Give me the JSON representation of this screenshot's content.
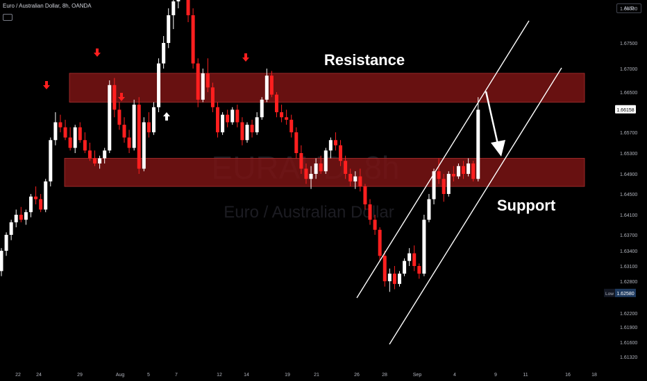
{
  "header": {
    "title": "Euro / Australian Dollar, 8h, OANDA"
  },
  "currency": "AUD",
  "watermark": {
    "symbol": "EURAUD, 8h",
    "name": "Euro / Australian Dollar"
  },
  "price_tag": {
    "value": "1.66158",
    "color": "#ffffff"
  },
  "low_tag": {
    "label": "Low",
    "value": "1.62580",
    "color": "#1e3a5f"
  },
  "colors": {
    "bull": "#ffffff",
    "bear": "#ff1f1f",
    "zone": "#7a1414",
    "background": "#000000"
  },
  "chart_data": {
    "type": "candlestick",
    "y_axis": {
      "ticks": [
        "1.68000",
        "1.67500",
        "1.67000",
        "1.66500",
        "1.65700",
        "1.65300",
        "1.64900",
        "1.64500",
        "1.64100",
        "1.63700",
        "1.63400",
        "1.63100",
        "1.62800",
        "1.62200",
        "1.61900",
        "1.61600",
        "1.61320"
      ]
    },
    "x_axis": {
      "ticks": [
        "22",
        "24",
        "29",
        "Aug",
        "5",
        "7",
        "12",
        "14",
        "19",
        "21",
        "26",
        "28",
        "Sep",
        "4",
        "9",
        "11",
        "16",
        "18"
      ]
    },
    "zones": [
      {
        "label": "Resistance",
        "top": 1.669,
        "bottom": 1.663
      },
      {
        "label": "Support",
        "top": 1.652,
        "bottom": 1.6465
      }
    ],
    "annotations": [
      "Resistance",
      "Support"
    ],
    "channel": {
      "type": "ascending"
    },
    "candles": [
      [
        1.63,
        1.6345,
        1.629,
        1.634
      ],
      [
        1.634,
        1.6375,
        1.633,
        1.637
      ],
      [
        1.637,
        1.64,
        1.636,
        1.6395
      ],
      [
        1.6395,
        1.642,
        1.6385,
        1.641
      ],
      [
        1.641,
        1.6425,
        1.6395,
        1.64
      ],
      [
        1.64,
        1.642,
        1.639,
        1.6415
      ],
      [
        1.6415,
        1.645,
        1.6405,
        1.6445
      ],
      [
        1.6445,
        1.6465,
        1.643,
        1.644
      ],
      [
        1.644,
        1.645,
        1.6415,
        1.642
      ],
      [
        1.642,
        1.648,
        1.6415,
        1.6475
      ],
      [
        1.6475,
        1.656,
        1.6465,
        1.6555
      ],
      [
        1.6555,
        1.661,
        1.6545,
        1.659
      ],
      [
        1.659,
        1.6605,
        1.657,
        1.658
      ],
      [
        1.658,
        1.6595,
        1.6555,
        1.656
      ],
      [
        1.656,
        1.658,
        1.6535,
        1.654
      ],
      [
        1.654,
        1.6585,
        1.653,
        1.658
      ],
      [
        1.658,
        1.659,
        1.655,
        1.6555
      ],
      [
        1.6555,
        1.657,
        1.653,
        1.6535
      ],
      [
        1.6535,
        1.655,
        1.6515,
        1.652
      ],
      [
        1.652,
        1.6535,
        1.6505,
        1.651
      ],
      [
        1.651,
        1.6525,
        1.65,
        1.652
      ],
      [
        1.652,
        1.654,
        1.651,
        1.6535
      ],
      [
        1.6535,
        1.6675,
        1.653,
        1.6665
      ],
      [
        1.6665,
        1.668,
        1.66,
        1.6615
      ],
      [
        1.6615,
        1.663,
        1.6575,
        1.6585
      ],
      [
        1.6585,
        1.66,
        1.655,
        1.656
      ],
      [
        1.656,
        1.6575,
        1.653,
        1.654
      ],
      [
        1.654,
        1.6635,
        1.6535,
        1.6625
      ],
      [
        1.6625,
        1.664,
        1.649,
        1.65
      ],
      [
        1.65,
        1.66,
        1.6495,
        1.659
      ],
      [
        1.659,
        1.661,
        1.656,
        1.657
      ],
      [
        1.657,
        1.663,
        1.6565,
        1.662
      ],
      [
        1.662,
        1.672,
        1.661,
        1.671
      ],
      [
        1.671,
        1.676,
        1.67,
        1.675
      ],
      [
        1.675,
        1.68,
        1.674,
        1.679
      ],
      [
        1.679,
        1.682,
        1.677,
        1.681
      ],
      [
        1.681,
        1.685,
        1.68,
        1.684
      ],
      [
        1.684,
        1.687,
        1.682,
        1.683
      ],
      [
        1.683,
        1.685,
        1.678,
        1.679
      ],
      [
        1.679,
        1.68,
        1.67,
        1.671
      ],
      [
        1.671,
        1.672,
        1.662,
        1.6635
      ],
      [
        1.6635,
        1.67,
        1.663,
        1.669
      ],
      [
        1.669,
        1.672,
        1.665,
        1.666
      ],
      [
        1.666,
        1.667,
        1.661,
        1.662
      ],
      [
        1.662,
        1.663,
        1.656,
        1.657
      ],
      [
        1.657,
        1.661,
        1.6565,
        1.6605
      ],
      [
        1.6605,
        1.6615,
        1.658,
        1.659
      ],
      [
        1.659,
        1.662,
        1.6585,
        1.6615
      ],
      [
        1.6615,
        1.6625,
        1.658,
        1.659
      ],
      [
        1.659,
        1.66,
        1.6545,
        1.6555
      ],
      [
        1.6555,
        1.659,
        1.655,
        1.6585
      ],
      [
        1.6585,
        1.6595,
        1.656,
        1.657
      ],
      [
        1.657,
        1.661,
        1.6565,
        1.66
      ],
      [
        1.66,
        1.664,
        1.6595,
        1.6635
      ],
      [
        1.6635,
        1.67,
        1.663,
        1.6685
      ],
      [
        1.6685,
        1.6695,
        1.664,
        1.6645
      ],
      [
        1.6645,
        1.665,
        1.66,
        1.661
      ],
      [
        1.661,
        1.6625,
        1.659,
        1.66
      ],
      [
        1.66,
        1.6615,
        1.6585,
        1.6595
      ],
      [
        1.6595,
        1.6605,
        1.656,
        1.657
      ],
      [
        1.657,
        1.658,
        1.652,
        1.653
      ],
      [
        1.653,
        1.6545,
        1.649,
        1.65
      ],
      [
        1.65,
        1.651,
        1.647,
        1.648
      ],
      [
        1.648,
        1.6505,
        1.646,
        1.649
      ],
      [
        1.649,
        1.652,
        1.648,
        1.651
      ],
      [
        1.651,
        1.6525,
        1.649,
        1.6495
      ],
      [
        1.6495,
        1.654,
        1.649,
        1.6535
      ],
      [
        1.6535,
        1.656,
        1.652,
        1.6555
      ],
      [
        1.6555,
        1.657,
        1.6535,
        1.6545
      ],
      [
        1.6545,
        1.6555,
        1.6505,
        1.6515
      ],
      [
        1.6515,
        1.6525,
        1.648,
        1.649
      ],
      [
        1.649,
        1.65,
        1.6465,
        1.6475
      ],
      [
        1.6475,
        1.6495,
        1.646,
        1.6485
      ],
      [
        1.6485,
        1.65,
        1.6455,
        1.6465
      ],
      [
        1.6465,
        1.647,
        1.642,
        1.643
      ],
      [
        1.643,
        1.644,
        1.639,
        1.64
      ],
      [
        1.64,
        1.641,
        1.637,
        1.638
      ],
      [
        1.638,
        1.6385,
        1.632,
        1.633
      ],
      [
        1.633,
        1.634,
        1.627,
        1.628
      ],
      [
        1.628,
        1.6305,
        1.626,
        1.6295
      ],
      [
        1.6295,
        1.631,
        1.6265,
        1.6275
      ],
      [
        1.6275,
        1.63,
        1.627,
        1.6295
      ],
      [
        1.6295,
        1.6325,
        1.629,
        1.632
      ],
      [
        1.632,
        1.6345,
        1.631,
        1.6335
      ],
      [
        1.6335,
        1.635,
        1.63,
        1.631
      ],
      [
        1.631,
        1.6315,
        1.6285,
        1.6295
      ],
      [
        1.6295,
        1.641,
        1.629,
        1.64
      ],
      [
        1.64,
        1.645,
        1.6395,
        1.644
      ],
      [
        1.644,
        1.65,
        1.643,
        1.6495
      ],
      [
        1.6495,
        1.652,
        1.647,
        1.648
      ],
      [
        1.648,
        1.649,
        1.6435,
        1.645
      ],
      [
        1.645,
        1.6495,
        1.6445,
        1.649
      ],
      [
        1.649,
        1.6505,
        1.6475,
        1.6485
      ],
      [
        1.6485,
        1.651,
        1.648,
        1.6505
      ],
      [
        1.6505,
        1.6515,
        1.648,
        1.649
      ],
      [
        1.649,
        1.652,
        1.6485,
        1.651
      ],
      [
        1.651,
        1.6515,
        1.6475,
        1.648
      ],
      [
        1.648,
        1.664,
        1.6475,
        1.6615
      ]
    ]
  }
}
